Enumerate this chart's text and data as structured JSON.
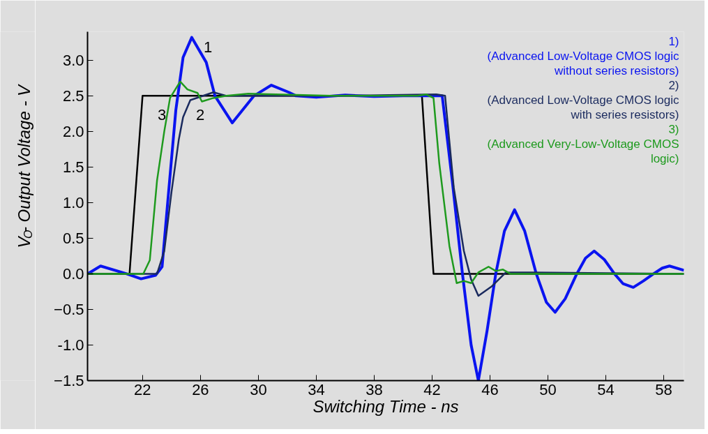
{
  "chart_data": {
    "type": "line",
    "xlabel": "Switching Time - ns",
    "ylabel": "V$_{O}$- Output Voltage - V",
    "xlim": [
      18.2,
      59.4
    ],
    "ylim": [
      -1.5,
      3.4
    ],
    "xticks": [
      22,
      26,
      30,
      34,
      38,
      42,
      46,
      50,
      54,
      58
    ],
    "yticks": [
      -1.5,
      {
        "value": -1,
        "label": "-1.0"
      },
      -0.5,
      {
        "value": 0,
        "label": "0.0"
      },
      0.5,
      {
        "value": 1,
        "label": "1.0"
      },
      1.5,
      {
        "value": 2,
        "label": "2.0"
      },
      2.5,
      {
        "value": 3,
        "label": "3.0"
      }
    ],
    "grid": false,
    "marker": "none",
    "line_style": "solid",
    "series": [
      {
        "color": "#000000",
        "x": [
          18.2,
          21.1,
          22.0,
          41.3,
          42.1,
          59.4
        ],
        "values": [
          0,
          0,
          2.5,
          2.5,
          0,
          0
        ]
      },
      {
        "name": "1) (Advanced Low-Voltage CMOS logic without series resistors)",
        "color": "#0a14f0",
        "x": [
          18.2,
          19.1,
          20.9,
          21.9,
          22.9,
          23.35,
          23.8,
          24.3,
          24.8,
          25.4,
          26.4,
          27.0,
          28.2,
          29.7,
          30.9,
          32.1,
          32.6,
          34,
          36,
          38,
          40,
          41.5,
          42.7,
          43.4,
          44.1,
          44.7,
          45.2,
          45.8,
          46.4,
          47.0,
          47.7,
          48.4,
          49.2,
          49.9,
          50.5,
          51.2,
          52.0,
          52.6,
          53.2,
          53.9,
          54.6,
          55.2,
          55.9,
          56.6,
          57.3,
          57.9,
          58.4,
          59.4
        ],
        "values": [
          0.0,
          0.11,
          0.0,
          -0.07,
          -0.02,
          0.1,
          1.15,
          2.3,
          3.04,
          3.32,
          2.97,
          2.5,
          2.12,
          2.5,
          2.65,
          2.55,
          2.5,
          2.48,
          2.51,
          2.49,
          2.5,
          2.5,
          2.5,
          1.3,
          0.0,
          -1.0,
          -1.5,
          -0.8,
          0.0,
          0.6,
          0.9,
          0.6,
          0.0,
          -0.4,
          -0.54,
          -0.35,
          0.0,
          0.22,
          0.32,
          0.2,
          0.0,
          -0.14,
          -0.19,
          -0.1,
          0.0,
          0.08,
          0.11,
          0.05
        ]
      },
      {
        "name": "2) (Advanced Low-Voltage CMOS logic with series resistors)",
        "color": "#1a2a5e",
        "x": [
          18.2,
          23.0,
          23.5,
          24.0,
          24.5,
          24.8,
          25.3,
          26.9,
          27.8,
          35,
          42.3,
          42.9,
          43.5,
          44.2,
          44.7,
          45.2,
          46.1,
          47.1,
          48.3,
          59.4
        ],
        "values": [
          0,
          0,
          0.32,
          1.15,
          1.88,
          2.2,
          2.44,
          2.55,
          2.5,
          2.5,
          2.52,
          2.5,
          1.21,
          0.32,
          -0.08,
          -0.31,
          -0.18,
          0.02,
          0.02,
          0
        ]
      },
      {
        "name": "3) (Advanced Very-Low-Voltage CMOS logic)",
        "color": "#1e9a1e",
        "x": [
          18.2,
          22.05,
          22.5,
          23.0,
          23.5,
          23.9,
          24.6,
          25.1,
          25.8,
          26.1,
          26.9,
          27.8,
          29.3,
          35,
          41.0,
          41.6,
          42.1,
          42.5,
          43.2,
          43.7,
          44.2,
          44.7,
          45.2,
          45.9,
          46.4,
          46.9,
          47.4,
          59.4
        ],
        "values": [
          0,
          0,
          0.19,
          1.31,
          2.0,
          2.47,
          2.7,
          2.59,
          2.54,
          2.42,
          2.47,
          2.5,
          2.53,
          2.5,
          2.5,
          2.52,
          2.47,
          1.55,
          0.39,
          -0.13,
          -0.1,
          -0.13,
          0.02,
          0.1,
          0.04,
          0.06,
          0,
          0
        ]
      }
    ],
    "annotations": [
      "1",
      "2",
      "3"
    ]
  }
}
